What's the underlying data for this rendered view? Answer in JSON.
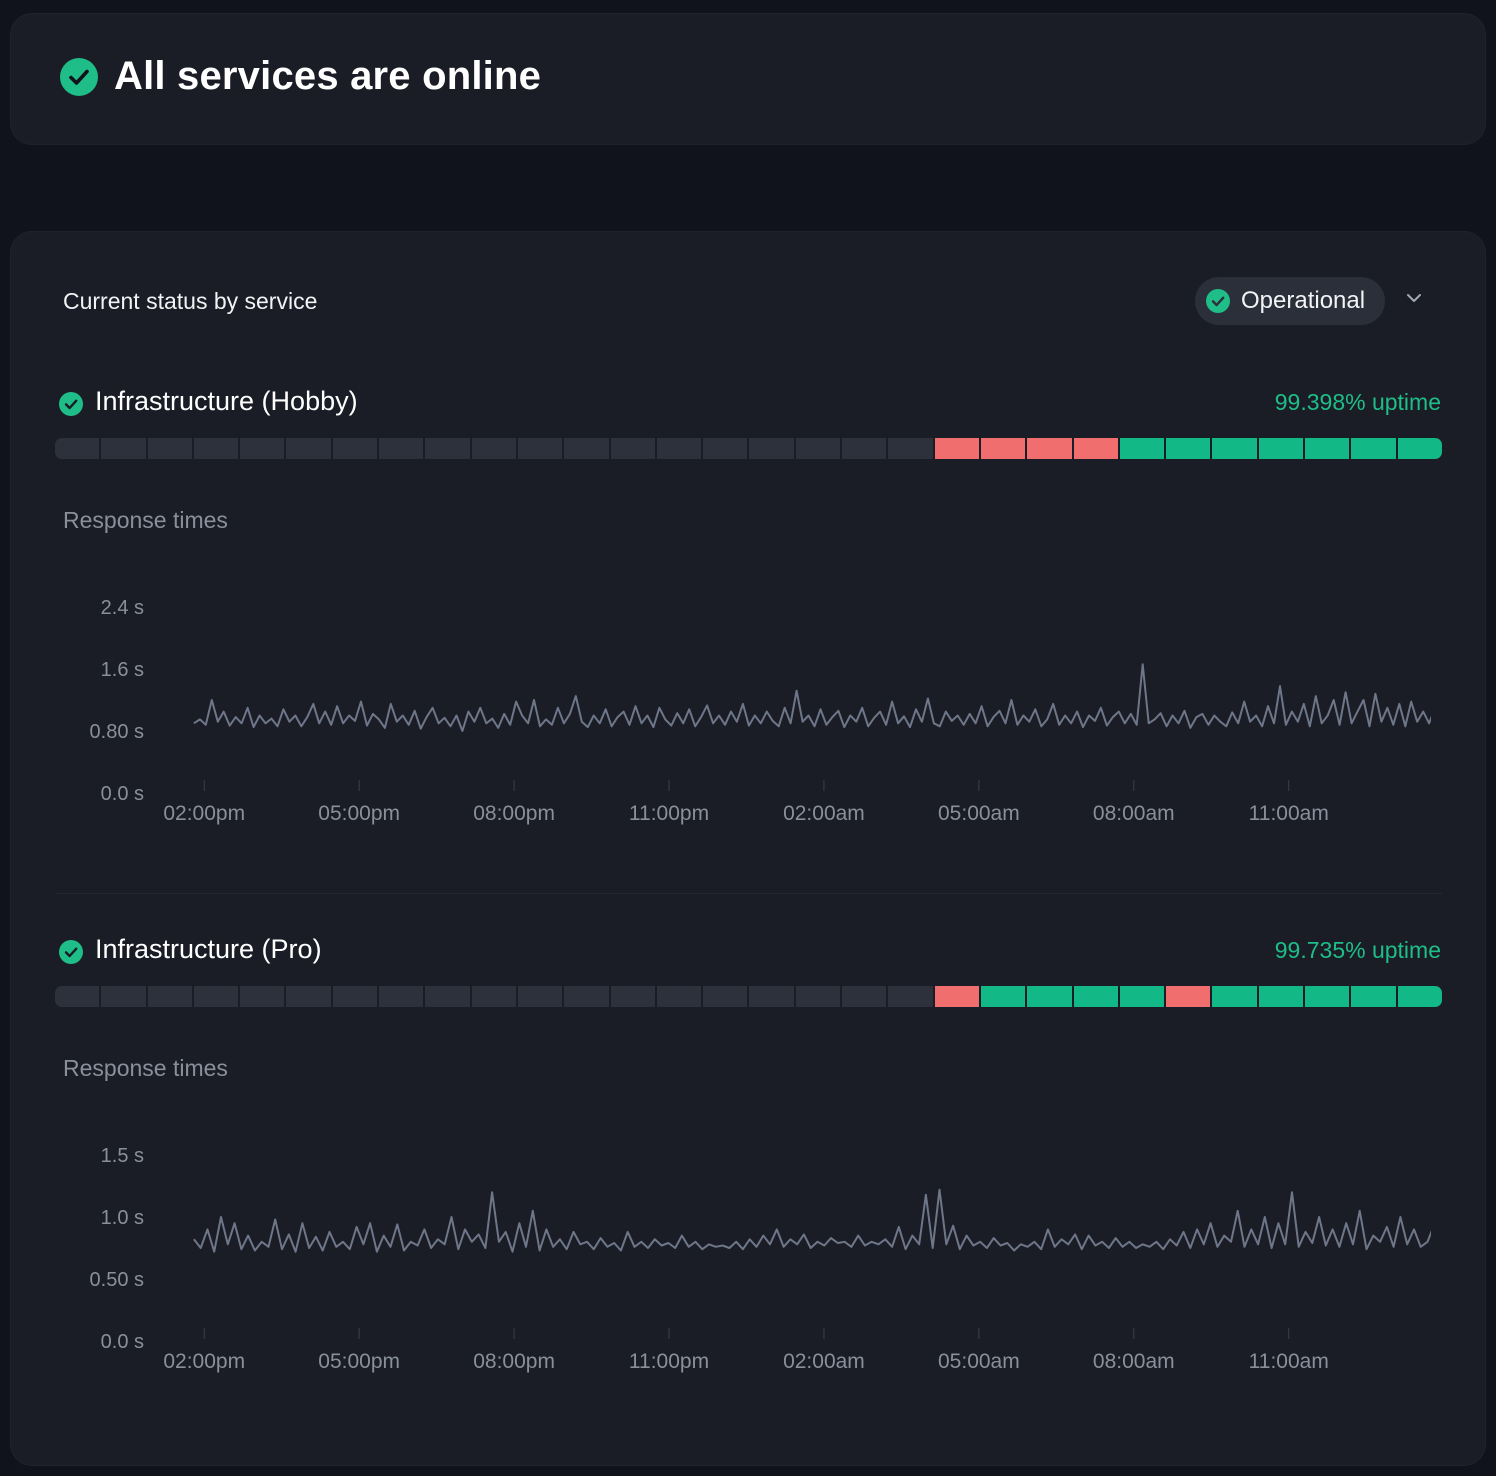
{
  "header": {
    "title": "All services are online",
    "colors": {
      "success": "#1fbd88",
      "down": "#f16e6e",
      "empty": "#2c313b",
      "line": "#6e7689"
    }
  },
  "main": {
    "section_title": "Current status by service",
    "filter": {
      "selected": "Operational",
      "icon": "check-circle-icon"
    }
  },
  "services": [
    {
      "name": "Infrastructure (Hobby)",
      "uptime": "99.398% uptime",
      "status_icon": "check-circle-icon",
      "history": [
        "none",
        "none",
        "none",
        "none",
        "none",
        "none",
        "none",
        "none",
        "none",
        "none",
        "none",
        "none",
        "none",
        "none",
        "none",
        "none",
        "none",
        "none",
        "none",
        "down",
        "down",
        "down",
        "down",
        "up",
        "up",
        "up",
        "up",
        "up",
        "up",
        "up"
      ],
      "response_label": "Response times",
      "chart_data": {
        "type": "line",
        "title": "",
        "ylabel": "",
        "xlabel": "",
        "ylim": [
          0,
          2.4
        ],
        "y_ticks": [
          "2.4 s",
          "1.6 s",
          "0.80 s",
          "0.0 s"
        ],
        "y_tick_values": [
          2.4,
          1.6,
          0.8,
          0.0
        ],
        "x_ticks": [
          "02:00pm",
          "05:00pm",
          "08:00pm",
          "11:00pm",
          "02:00am",
          "05:00am",
          "08:00am",
          "11:00am"
        ],
        "x_tick_hours": [
          0,
          3,
          6,
          9,
          12,
          15,
          18,
          21
        ],
        "x_range_hours": [
          -0.45,
          23.6
        ],
        "series": [
          {
            "values": [
              0.9,
              0.95,
              0.88,
              1.2,
              0.92,
              1.05,
              0.87,
              0.98,
              0.9,
              1.1,
              0.85,
              1.0,
              0.9,
              0.96,
              0.86,
              1.08,
              0.92,
              1.0,
              0.86,
              0.98,
              1.15,
              0.9,
              1.05,
              0.88,
              1.12,
              0.9,
              1.0,
              0.93,
              1.18,
              0.87,
              1.02,
              0.95,
              0.84,
              1.15,
              0.92,
              1.0,
              0.88,
              1.06,
              0.83,
              0.98,
              1.1,
              0.9,
              0.97,
              0.86,
              1.0,
              0.8,
              1.05,
              0.92,
              1.1,
              0.9,
              0.96,
              0.84,
              1.02,
              0.88,
              1.18,
              1.0,
              0.9,
              1.2,
              0.86,
              0.95,
              0.88,
              1.1,
              0.9,
              1.02,
              1.25,
              0.92,
              0.85,
              1.0,
              0.9,
              1.08,
              0.86,
              0.98,
              1.05,
              0.88,
              1.12,
              0.9,
              1.0,
              0.85,
              1.1,
              0.95,
              0.87,
              1.03,
              0.9,
              1.08,
              0.86,
              0.98,
              1.13,
              0.9,
              1.0,
              0.88,
              1.05,
              0.92,
              1.15,
              0.87,
              1.0,
              0.9,
              1.05,
              0.93,
              0.86,
              1.1,
              0.9,
              1.32,
              0.92,
              1.0,
              0.86,
              1.08,
              0.88,
              0.98,
              1.06,
              0.85,
              1.0,
              0.92,
              1.1,
              0.86,
              0.97,
              1.05,
              0.88,
              1.18,
              0.9,
              0.99,
              0.85,
              1.08,
              0.92,
              1.22,
              0.9,
              0.86,
              1.05,
              0.93,
              1.0,
              0.88,
              1.02,
              0.9,
              1.12,
              0.86,
              0.98,
              1.06,
              0.9,
              1.2,
              0.88,
              1.0,
              0.92,
              1.08,
              0.86,
              0.95,
              1.15,
              0.88,
              1.0,
              0.9,
              1.05,
              0.85,
              1.0,
              0.93,
              1.1,
              0.87,
              0.98,
              1.05,
              0.9,
              1.02,
              0.88,
              1.66,
              0.9,
              0.95,
              1.03,
              0.86,
              1.0,
              0.9,
              1.06,
              0.84,
              0.98,
              1.02,
              0.88,
              1.0,
              0.92,
              0.86,
              1.04,
              0.9,
              1.18,
              0.92,
              1.0,
              0.86,
              1.12,
              0.9,
              1.38,
              0.88,
              1.05,
              0.92,
              1.15,
              0.86,
              1.25,
              0.9,
              1.0,
              1.2,
              0.88,
              1.3,
              0.9,
              1.05,
              1.2,
              0.86,
              1.28,
              0.92,
              1.1,
              0.88,
              1.15,
              0.86,
              1.18,
              0.92,
              1.05,
              0.9,
              1.1,
              0.98
            ]
          }
        ]
      }
    },
    {
      "name": "Infrastructure (Pro)",
      "uptime": "99.735% uptime",
      "status_icon": "check-circle-icon",
      "history": [
        "none",
        "none",
        "none",
        "none",
        "none",
        "none",
        "none",
        "none",
        "none",
        "none",
        "none",
        "none",
        "none",
        "none",
        "none",
        "none",
        "none",
        "none",
        "none",
        "down",
        "up",
        "up",
        "up",
        "up",
        "down",
        "up",
        "up",
        "up",
        "up",
        "up"
      ],
      "response_label": "Response times",
      "chart_data": {
        "type": "line",
        "title": "",
        "ylabel": "",
        "xlabel": "",
        "ylim": [
          0,
          1.5
        ],
        "y_ticks": [
          "1.5 s",
          "1.0 s",
          "0.50 s",
          "0.0 s"
        ],
        "y_tick_values": [
          1.5,
          1.0,
          0.5,
          0.0
        ],
        "x_ticks": [
          "02:00pm",
          "05:00pm",
          "08:00pm",
          "11:00pm",
          "02:00am",
          "05:00am",
          "08:00am",
          "11:00am"
        ],
        "x_tick_hours": [
          0,
          3,
          6,
          9,
          12,
          15,
          18,
          21
        ],
        "x_range_hours": [
          -0.45,
          23.6
        ],
        "series": [
          {
            "values": [
              0.82,
              0.75,
              0.9,
              0.72,
              1.0,
              0.78,
              0.95,
              0.74,
              0.85,
              0.73,
              0.8,
              0.76,
              0.98,
              0.74,
              0.86,
              0.72,
              0.95,
              0.75,
              0.84,
              0.73,
              0.88,
              0.76,
              0.8,
              0.74,
              0.92,
              0.78,
              0.95,
              0.72,
              0.85,
              0.76,
              0.94,
              0.73,
              0.8,
              0.77,
              0.9,
              0.75,
              0.82,
              0.78,
              1.0,
              0.74,
              0.9,
              0.8,
              0.86,
              0.75,
              1.2,
              0.8,
              0.88,
              0.72,
              0.95,
              0.76,
              1.05,
              0.73,
              0.9,
              0.76,
              0.82,
              0.74,
              0.88,
              0.78,
              0.8,
              0.74,
              0.83,
              0.76,
              0.79,
              0.73,
              0.88,
              0.76,
              0.8,
              0.75,
              0.82,
              0.77,
              0.79,
              0.75,
              0.85,
              0.76,
              0.8,
              0.74,
              0.78,
              0.76,
              0.77,
              0.75,
              0.8,
              0.74,
              0.82,
              0.76,
              0.85,
              0.78,
              0.9,
              0.76,
              0.82,
              0.78,
              0.86,
              0.75,
              0.8,
              0.77,
              0.83,
              0.79,
              0.8,
              0.76,
              0.85,
              0.77,
              0.8,
              0.78,
              0.82,
              0.76,
              0.92,
              0.74,
              0.85,
              0.78,
              1.18,
              0.75,
              1.22,
              0.78,
              0.93,
              0.74,
              0.85,
              0.77,
              0.8,
              0.75,
              0.83,
              0.77,
              0.79,
              0.73,
              0.78,
              0.76,
              0.8,
              0.74,
              0.9,
              0.76,
              0.82,
              0.78,
              0.86,
              0.74,
              0.85,
              0.77,
              0.8,
              0.75,
              0.83,
              0.76,
              0.8,
              0.75,
              0.78,
              0.76,
              0.8,
              0.74,
              0.82,
              0.77,
              0.88,
              0.75,
              0.9,
              0.78,
              0.95,
              0.76,
              0.85,
              0.8,
              1.05,
              0.76,
              0.9,
              0.78,
              1.0,
              0.75,
              0.95,
              0.78,
              1.2,
              0.76,
              0.88,
              0.79,
              1.0,
              0.77,
              0.9,
              0.76,
              0.95,
              0.78,
              1.05,
              0.74,
              0.85,
              0.8,
              0.92,
              0.76,
              1.0,
              0.78,
              0.9,
              0.76,
              0.8,
              0.94,
              0.78
            ]
          }
        ]
      }
    }
  ]
}
